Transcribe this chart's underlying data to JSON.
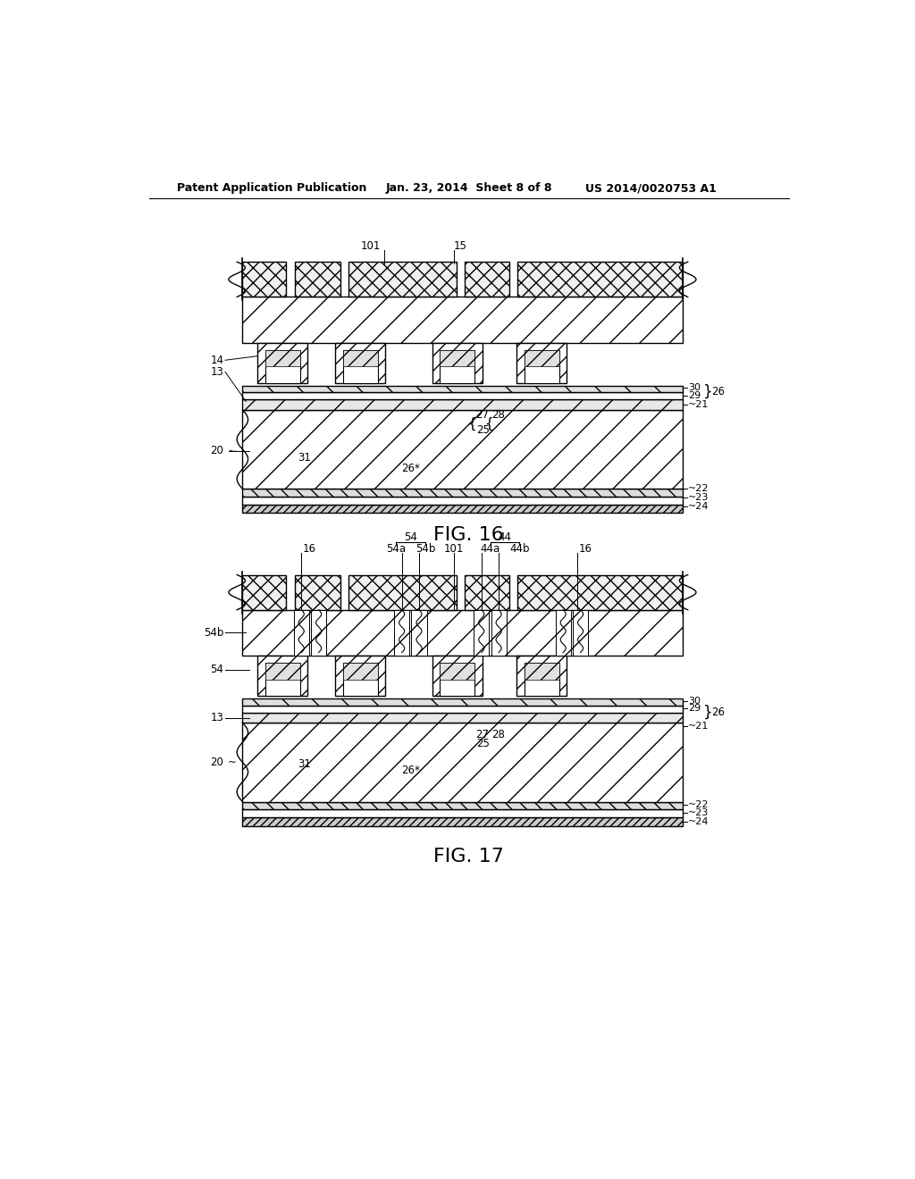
{
  "header_left": "Patent Application Publication",
  "header_mid": "Jan. 23, 2014  Sheet 8 of 8",
  "header_right": "US 2014/0020753 A1",
  "fig16_label": "FIG. 16",
  "fig17_label": "FIG. 17",
  "bg_color": "#ffffff",
  "line_color": "#000000"
}
